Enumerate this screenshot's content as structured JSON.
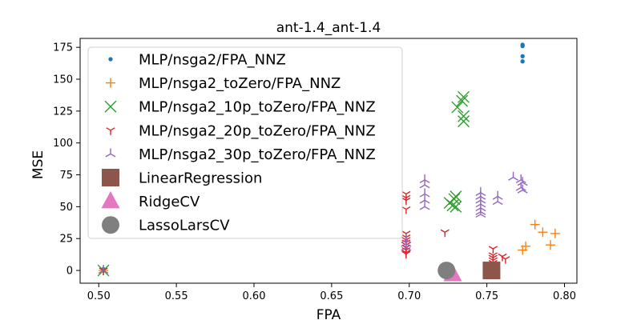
{
  "chart_data": {
    "type": "scatter",
    "title": "ant-1.4_ant-1.4",
    "xlabel": "FPA",
    "ylabel": "MSE",
    "xlim": [
      0.488,
      0.808
    ],
    "ylim": [
      -10,
      182
    ],
    "xticks": [
      "0.50",
      "0.55",
      "0.60",
      "0.65",
      "0.70",
      "0.75",
      "0.80"
    ],
    "xtick_values": [
      0.5,
      0.55,
      0.6,
      0.65,
      0.7,
      0.75,
      0.8
    ],
    "yticks": [
      "0",
      "25",
      "50",
      "75",
      "100",
      "125",
      "150",
      "175"
    ],
    "ytick_values": [
      0,
      25,
      50,
      75,
      100,
      125,
      150,
      175
    ],
    "grid": false,
    "legend_position": "upper-left",
    "series": [
      {
        "name": "MLP/nsga2/FPA_NNZ",
        "marker": "dot",
        "color": "#1f77b4",
        "points": [
          [
            0.503,
            1
          ],
          [
            0.503,
            0
          ],
          [
            0.773,
            177
          ],
          [
            0.773,
            176
          ],
          [
            0.773,
            168
          ],
          [
            0.773,
            164
          ]
        ]
      },
      {
        "name": "MLP/nsga2_toZero/FPA_NNZ",
        "marker": "plus",
        "color": "#ff7f0e",
        "points": [
          [
            0.503,
            0
          ],
          [
            0.773,
            16
          ],
          [
            0.775,
            19
          ],
          [
            0.781,
            36
          ],
          [
            0.786,
            30
          ],
          [
            0.791,
            20
          ],
          [
            0.794,
            29
          ]
        ]
      },
      {
        "name": "MLP/nsga2_10p_toZero/FPA_NNZ",
        "marker": "x",
        "color": "#2ca02c",
        "points": [
          [
            0.503,
            0
          ],
          [
            0.726,
            53
          ],
          [
            0.728,
            51
          ],
          [
            0.729,
            56
          ],
          [
            0.73,
            58
          ],
          [
            0.73,
            50
          ],
          [
            0.731,
            128
          ],
          [
            0.734,
            133
          ],
          [
            0.735,
            136
          ],
          [
            0.735,
            121
          ],
          [
            0.735,
            117
          ]
        ]
      },
      {
        "name": "MLP/nsga2_20p_toZero/FPA_NNZ",
        "marker": "tri_down",
        "color": "#d62728",
        "points": [
          [
            0.503,
            0
          ],
          [
            0.698,
            60
          ],
          [
            0.698,
            57
          ],
          [
            0.698,
            55
          ],
          [
            0.698,
            48
          ],
          [
            0.698,
            29
          ],
          [
            0.698,
            26
          ],
          [
            0.698,
            24
          ],
          [
            0.698,
            22
          ],
          [
            0.698,
            20
          ],
          [
            0.698,
            18
          ],
          [
            0.698,
            16
          ],
          [
            0.698,
            14
          ],
          [
            0.698,
            13
          ],
          [
            0.723,
            30
          ],
          [
            0.754,
            17
          ],
          [
            0.754,
            12
          ],
          [
            0.754,
            10
          ],
          [
            0.754,
            8
          ],
          [
            0.754,
            6
          ],
          [
            0.754,
            4
          ],
          [
            0.754,
            2
          ],
          [
            0.76,
            11
          ],
          [
            0.762,
            9
          ]
        ]
      },
      {
        "name": "MLP/nsga2_30p_toZero/FPA_NNZ",
        "marker": "tri_up",
        "color": "#9467bd",
        "points": [
          [
            0.503,
            0
          ],
          [
            0.698,
            24
          ],
          [
            0.698,
            21
          ],
          [
            0.698,
            18
          ],
          [
            0.71,
            71
          ],
          [
            0.71,
            67
          ],
          [
            0.71,
            60
          ],
          [
            0.71,
            55
          ],
          [
            0.71,
            50
          ],
          [
            0.746,
            61
          ],
          [
            0.746,
            58
          ],
          [
            0.746,
            55
          ],
          [
            0.746,
            52
          ],
          [
            0.746,
            49
          ],
          [
            0.746,
            46
          ],
          [
            0.746,
            44
          ],
          [
            0.757,
            58
          ],
          [
            0.757,
            54
          ],
          [
            0.767,
            73
          ],
          [
            0.772,
            71
          ],
          [
            0.773,
            69
          ],
          [
            0.772,
            65
          ],
          [
            0.773,
            63
          ]
        ]
      },
      {
        "name": "LinearRegression",
        "marker": "square",
        "color": "#8c564b",
        "points": [
          [
            0.753,
            0
          ]
        ]
      },
      {
        "name": "RidgeCV",
        "marker": "triangle",
        "color": "#e377c2",
        "points": [
          [
            0.728,
            -3
          ]
        ]
      },
      {
        "name": "LassoLarsCV",
        "marker": "circle",
        "color": "#7f7f7f",
        "points": [
          [
            0.724,
            0
          ]
        ]
      }
    ]
  }
}
